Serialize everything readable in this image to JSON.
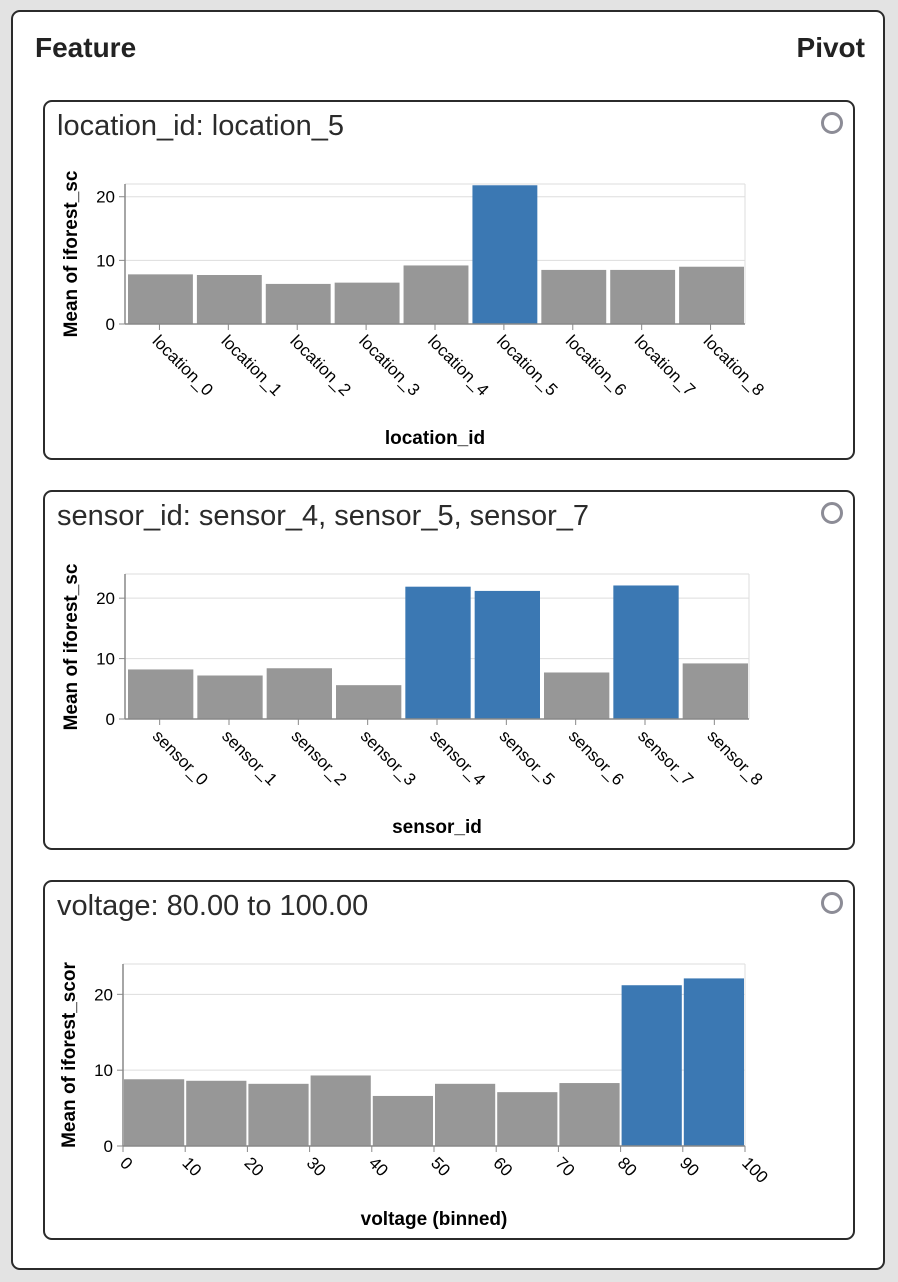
{
  "header": {
    "left": "Feature",
    "right": "Pivot"
  },
  "cards": [
    {
      "title": "location_id: location_5"
    },
    {
      "title": "sensor_id: sensor_4, sensor_5, sensor_7"
    },
    {
      "title": "voltage: 80.00 to 100.00"
    }
  ],
  "colors": {
    "bar": "#979797",
    "highlight": "#3b78b3",
    "grid": "#dddddd",
    "axis": "#888888"
  },
  "chart_data": [
    {
      "type": "bar",
      "categories": [
        "location_0",
        "location_1",
        "location_2",
        "location_3",
        "location_4",
        "location_5",
        "location_6",
        "location_7",
        "location_8"
      ],
      "values": [
        7.8,
        7.7,
        6.3,
        6.5,
        9.2,
        21.8,
        8.5,
        8.5,
        9.0
      ],
      "highlighted": [
        "location_5"
      ],
      "xlabel": "location_id",
      "ylabel": "Mean of iforest_sc",
      "yticks": [
        0,
        10,
        20
      ],
      "ylim": [
        0,
        22
      ]
    },
    {
      "type": "bar",
      "categories": [
        "sensor_0",
        "sensor_1",
        "sensor_2",
        "sensor_3",
        "sensor_4",
        "sensor_5",
        "sensor_6",
        "sensor_7",
        "sensor_8"
      ],
      "values": [
        8.2,
        7.2,
        8.4,
        5.6,
        21.9,
        21.2,
        7.7,
        22.1,
        9.2
      ],
      "highlighted": [
        "sensor_4",
        "sensor_5",
        "sensor_7"
      ],
      "xlabel": "sensor_id",
      "ylabel": "Mean of iforest_sc",
      "yticks": [
        0,
        10,
        20
      ],
      "ylim": [
        0,
        24
      ]
    },
    {
      "type": "bar",
      "bins": [
        [
          0,
          10
        ],
        [
          10,
          20
        ],
        [
          20,
          30
        ],
        [
          30,
          40
        ],
        [
          40,
          50
        ],
        [
          50,
          60
        ],
        [
          60,
          70
        ],
        [
          70,
          80
        ],
        [
          80,
          90
        ],
        [
          90,
          100
        ]
      ],
      "values": [
        8.8,
        8.6,
        8.2,
        9.3,
        6.6,
        8.2,
        7.1,
        8.3,
        21.2,
        22.1
      ],
      "highlight_range": [
        80,
        100
      ],
      "xticks": [
        0,
        10,
        20,
        30,
        40,
        50,
        60,
        70,
        80,
        90,
        100
      ],
      "xlabel": "voltage (binned)",
      "ylabel": "Mean of iforest_scor",
      "yticks": [
        0,
        10,
        20
      ],
      "ylim": [
        0,
        24
      ]
    }
  ]
}
